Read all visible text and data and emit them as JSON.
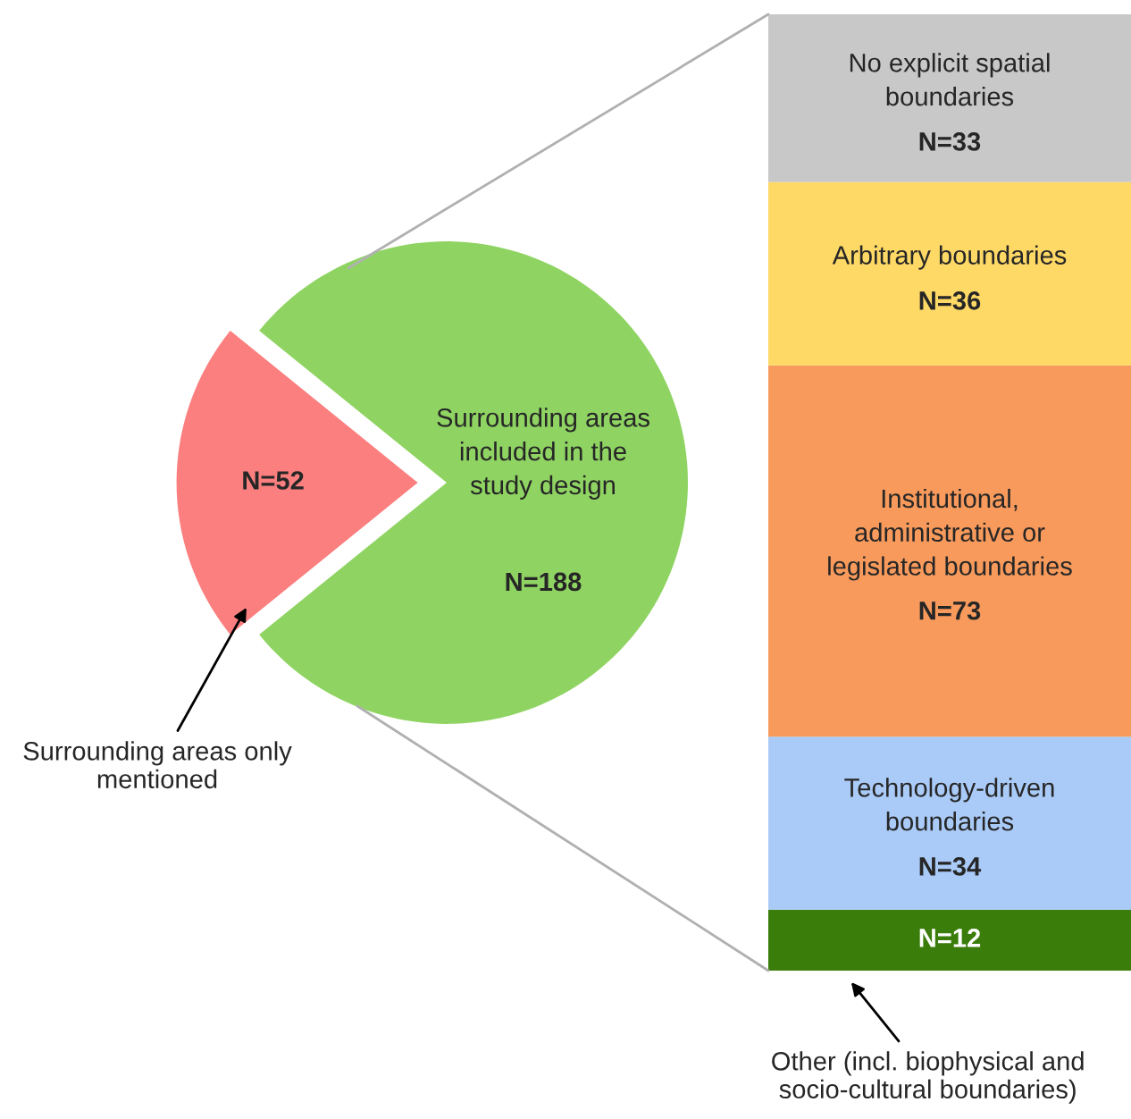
{
  "chart_data": [
    {
      "type": "pie",
      "categories": [
        "Surrounding areas only mentioned",
        "Surrounding areas\nincluded in the\nstudy design"
      ],
      "values": [
        52,
        188
      ],
      "colors": [
        "#fb7f7f",
        "#8fd462"
      ],
      "value_labels": [
        "N=52",
        "N=188"
      ]
    },
    {
      "type": "bar",
      "stacked": true,
      "categories": [
        null
      ],
      "series": [
        {
          "name": "Other (incl. biophysical and\nsocio-cultural boundaries)",
          "color": "#3a7d0a",
          "values": [
            12
          ],
          "value_labels": [
            "N=12"
          ]
        },
        {
          "name": "Technology-driven\nboundaries",
          "color": "#aacbf8",
          "values": [
            34
          ],
          "value_labels": [
            "N=34"
          ]
        },
        {
          "name": "Institutional,\nadministrative or\nlegislated boundaries",
          "color": "#f79a5c",
          "values": [
            73
          ],
          "value_labels": [
            "N=73"
          ]
        },
        {
          "name": "Arbitrary boundaries",
          "color": "#fed966",
          "values": [
            36
          ],
          "value_labels": [
            "N=36"
          ]
        },
        {
          "name": "No explicit spatial\nboundaries",
          "color": "#c8c8c8",
          "values": [
            33
          ],
          "value_labels": [
            "N=33"
          ]
        }
      ]
    }
  ]
}
